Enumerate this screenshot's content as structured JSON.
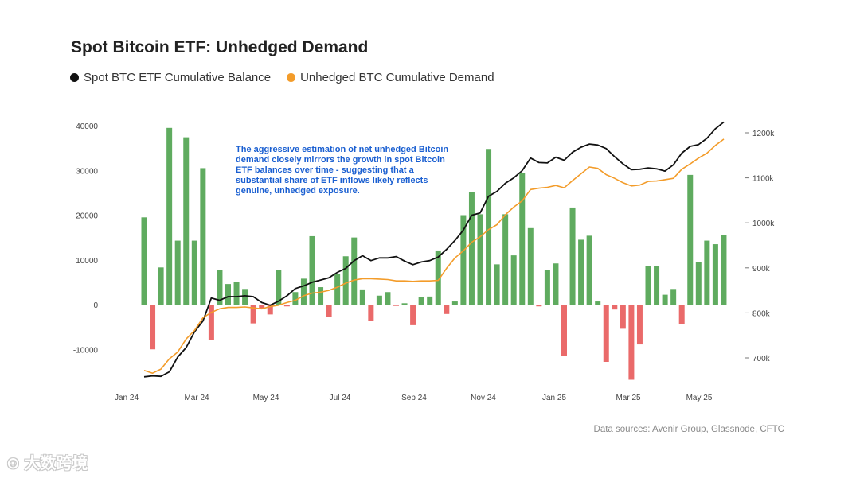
{
  "title": "Spot Bitcoin ETF: Unhedged Demand",
  "legend": [
    {
      "label": "Spot BTC ETF Cumulative Balance",
      "color": "#111111"
    },
    {
      "label": "Unhedged BTC Cumulative Demand",
      "color": "#f39c2a"
    }
  ],
  "annotation": "The aggressive estimation of net unhedged Bitcoin demand closely mirrors the growth in spot Bitcoin ETF balances over time - suggesting that a substantial share of ETF inflows likely reflects genuine, unhedged exposure.",
  "source": "Data sources: Avenir Group, Glassnode, CFTC",
  "watermark": "大数跨境",
  "chart_data": {
    "type": "bar",
    "colors": {
      "positive": "#5fab5f",
      "negative": "#ea6a6a",
      "balance": "#111111",
      "unhedged": "#f39c2a"
    },
    "x_tick_labels": [
      "Jan 24",
      "Mar 24",
      "May 24",
      "Jul 24",
      "Sep 24",
      "Nov 24",
      "Jan 25",
      "Mar 25",
      "May 25"
    ],
    "y_left_ticks": [
      "40000",
      "30000",
      "20000",
      "10000",
      "0",
      "-10000"
    ],
    "y_left_range": [
      -17000,
      40000
    ],
    "y_right_ticks": [
      "1200k",
      "1100k",
      "1000k",
      "900k",
      "800k",
      "700k"
    ],
    "y_right_range": [
      650,
      1220
    ],
    "bars": [
      19500,
      -10000,
      8300,
      39500,
      14300,
      37400,
      14300,
      30500,
      -8000,
      7800,
      4600,
      5000,
      3500,
      -4200,
      -900,
      -2200,
      7800,
      -400,
      2800,
      5800,
      15300,
      3900,
      -2700,
      6800,
      10800,
      15000,
      3400,
      -3700,
      2000,
      2800,
      -300,
      300,
      -4600,
      1700,
      1800,
      12100,
      -2100,
      700,
      20000,
      25100,
      20200,
      34800,
      9000,
      20200,
      11000,
      29500,
      17100,
      -400,
      7800,
      9200,
      -11400,
      21700,
      14500,
      15400,
      700,
      -12800,
      -1100,
      -5400,
      -16800,
      -8900,
      8600,
      8700,
      2200,
      3500,
      -4300,
      29000,
      9500,
      14300,
      13500,
      15600
    ],
    "series": [
      {
        "name": "Spot BTC ETF Cumulative Balance",
        "x": [
          0,
          1,
          2,
          3,
          4,
          5,
          6,
          7,
          8,
          9,
          10,
          11,
          12,
          13,
          14,
          15,
          16,
          17,
          18,
          19,
          20,
          21,
          22,
          23,
          24,
          25,
          26,
          27,
          28,
          29,
          30,
          31,
          32,
          33,
          34,
          35,
          36,
          37,
          38,
          39,
          40,
          41,
          42,
          43,
          44,
          45,
          46,
          47,
          48,
          49,
          50,
          51,
          52,
          53,
          54,
          55,
          56,
          57,
          58,
          59,
          60,
          61,
          62,
          63,
          64,
          65,
          66,
          67,
          68,
          69
        ],
        "values": [
          658,
          660,
          659,
          669,
          702,
          723,
          758,
          782,
          833,
          828,
          836,
          836,
          838,
          836,
          823,
          817,
          826,
          838,
          854,
          860,
          868,
          873,
          878,
          890,
          899,
          916,
          927,
          916,
          922,
          922,
          925,
          915,
          907,
          913,
          916,
          924,
          941,
          961,
          984,
          1017,
          1022,
          1059,
          1070,
          1088,
          1100,
          1116,
          1144,
          1134,
          1133,
          1146,
          1139,
          1157,
          1168,
          1175,
          1173,
          1165,
          1147,
          1131,
          1118,
          1119,
          1122,
          1120,
          1115,
          1129,
          1155,
          1170,
          1174,
          1188,
          1209,
          1224
        ]
      },
      {
        "name": "Unhedged BTC Cumulative Demand",
        "x": [
          0,
          1,
          2,
          3,
          4,
          5,
          6,
          7,
          8,
          9,
          10,
          11,
          12,
          13,
          14,
          15,
          16,
          17,
          18,
          19,
          20,
          21,
          22,
          23,
          24,
          25,
          26,
          27,
          28,
          29,
          30,
          31,
          32,
          33,
          34,
          35,
          36,
          37,
          38,
          39,
          40,
          41,
          42,
          43,
          44,
          45,
          46,
          47,
          48,
          49,
          50,
          51,
          52,
          53,
          54,
          55,
          56,
          57,
          58,
          59,
          60,
          61,
          62,
          63,
          64,
          65,
          66,
          67,
          68,
          69
        ],
        "values": [
          672,
          666,
          675,
          698,
          713,
          742,
          761,
          789,
          801,
          809,
          812,
          812,
          813,
          811,
          809,
          814,
          817,
          823,
          828,
          838,
          844,
          846,
          850,
          857,
          866,
          873,
          876,
          876,
          875,
          874,
          871,
          871,
          870,
          871,
          871,
          872,
          899,
          922,
          938,
          957,
          969,
          985,
          996,
          1018,
          1035,
          1049,
          1074,
          1077,
          1079,
          1083,
          1078,
          1094,
          1109,
          1124,
          1121,
          1107,
          1099,
          1089,
          1082,
          1084,
          1092,
          1093,
          1096,
          1099,
          1119,
          1131,
          1144,
          1155,
          1172,
          1186
        ]
      }
    ]
  }
}
